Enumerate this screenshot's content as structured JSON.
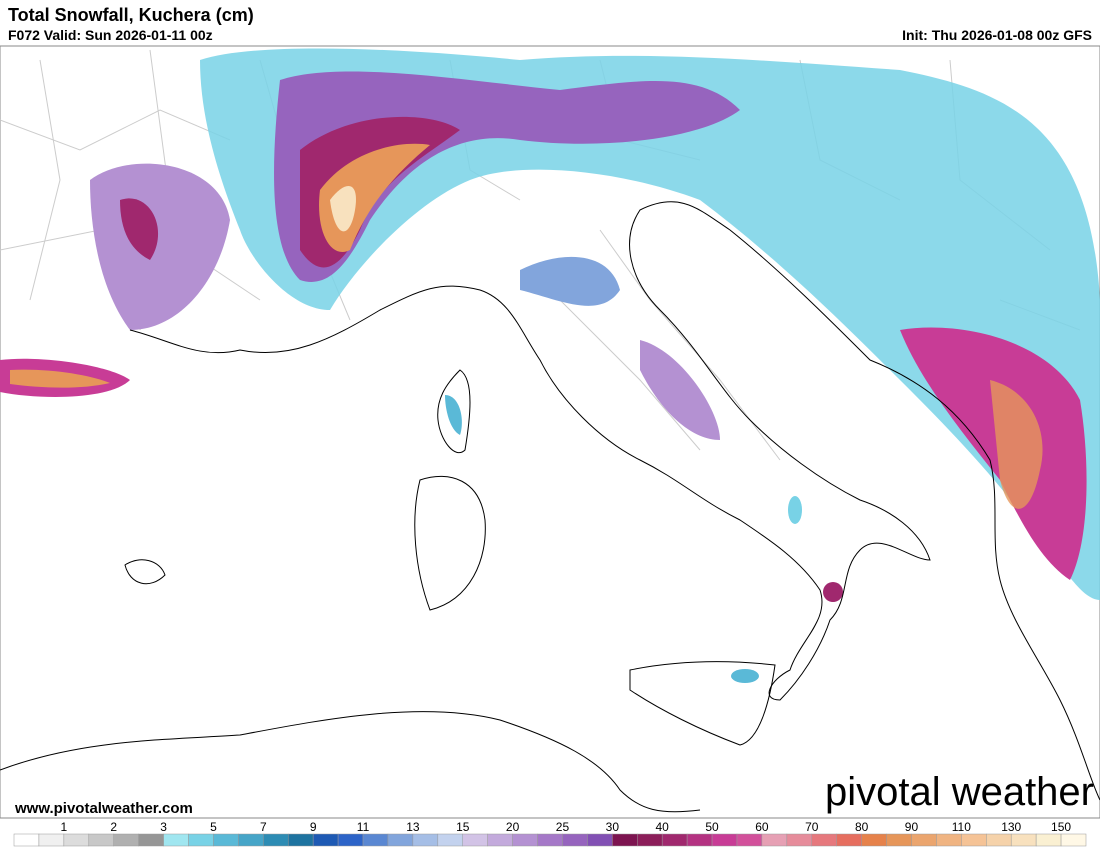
{
  "header": {
    "title": "Total Snowfall, Kuchera (cm)",
    "valid": "F072 Valid: Sun 2026-01-11 00z",
    "init": "Init: Thu 2026-01-08 00z GFS"
  },
  "footer": {
    "url": "www.pivotalweather.com",
    "brand": "pivotal weather"
  },
  "colorbar": {
    "labels": [
      "1",
      "2",
      "3",
      "5",
      "7",
      "9",
      "11",
      "13",
      "15",
      "20",
      "25",
      "30",
      "40",
      "50",
      "60",
      "70",
      "80",
      "90",
      "110",
      "130",
      "150"
    ],
    "colors": [
      "#ffffff",
      "#f0f0f0",
      "#dcdcdc",
      "#c8c8c8",
      "#b0b0b0",
      "#969696",
      "#a0e6f0",
      "#78d2e6",
      "#5ab9d7",
      "#46a5c8",
      "#2d8cb4",
      "#1e73a0",
      "#1e5ab4",
      "#2d64c8",
      "#5a87d2",
      "#82a5dc",
      "#a5bee6",
      "#c3d2ee",
      "#d2c3e6",
      "#c3aadc",
      "#b491d2",
      "#a578c8",
      "#9664be",
      "#8250b4",
      "#7d1450",
      "#8c1e5a",
      "#a0286e",
      "#b43282",
      "#c83c96",
      "#d2509b",
      "#e6a0b4",
      "#e68c9b",
      "#e6787d",
      "#e66e5f",
      "#e6824b",
      "#e6965a",
      "#eba56e",
      "#f0b482",
      "#f5c396",
      "#f5d2aa",
      "#f8e1be",
      "#faf0d2",
      "#fff8e6"
    ]
  }
}
